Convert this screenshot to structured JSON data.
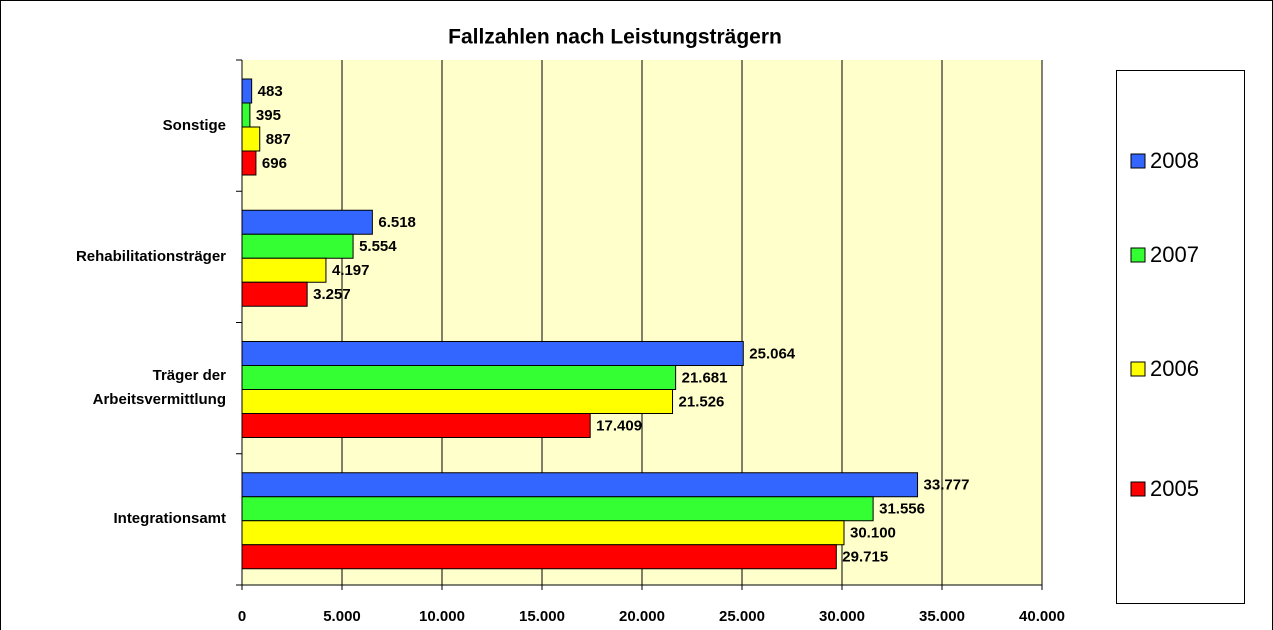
{
  "chart_data": {
    "type": "barh",
    "title": "Fallzahlen nach Leistungsträgern",
    "categories": [
      "Sonstige",
      "Rehabilitationsträger",
      "Träger der Arbeitsvermittlung",
      "Integrationsamt"
    ],
    "series": [
      {
        "name": "2008",
        "color": "#3366ff",
        "values": [
          483,
          6518,
          25064,
          33777
        ],
        "value_labels": [
          "483",
          "6.518",
          "25.064",
          "33.777"
        ]
      },
      {
        "name": "2007",
        "color": "#33ff33",
        "values": [
          395,
          5554,
          21681,
          31556
        ],
        "value_labels": [
          "395",
          "5.554",
          "21.681",
          "31.556"
        ]
      },
      {
        "name": "2006",
        "color": "#ffff00",
        "values": [
          887,
          4197,
          21526,
          30100
        ],
        "value_labels": [
          "887",
          "4.197",
          "21.526",
          "30.100"
        ]
      },
      {
        "name": "2005",
        "color": "#ff0000",
        "values": [
          696,
          3257,
          17409,
          29715
        ],
        "value_labels": [
          "696",
          "3.257",
          "17.409",
          "29.715"
        ]
      }
    ],
    "xlim": [
      0,
      40000
    ],
    "xticks": [
      0,
      {
        "value": 5000,
        "label": "5.000"
      },
      {
        "value": 10000,
        "label": "10.000"
      },
      {
        "value": 15000,
        "label": "15.000"
      },
      {
        "value": 20000,
        "label": "20.000"
      },
      {
        "value": 25000,
        "label": "25.000"
      },
      {
        "value": 30000,
        "label": "30.000"
      },
      {
        "value": 35000,
        "label": "35.000"
      },
      {
        "value": 40000,
        "label": "40.000"
      }
    ],
    "grid": true,
    "legend": "right",
    "plot_background": "#ffffcc"
  }
}
